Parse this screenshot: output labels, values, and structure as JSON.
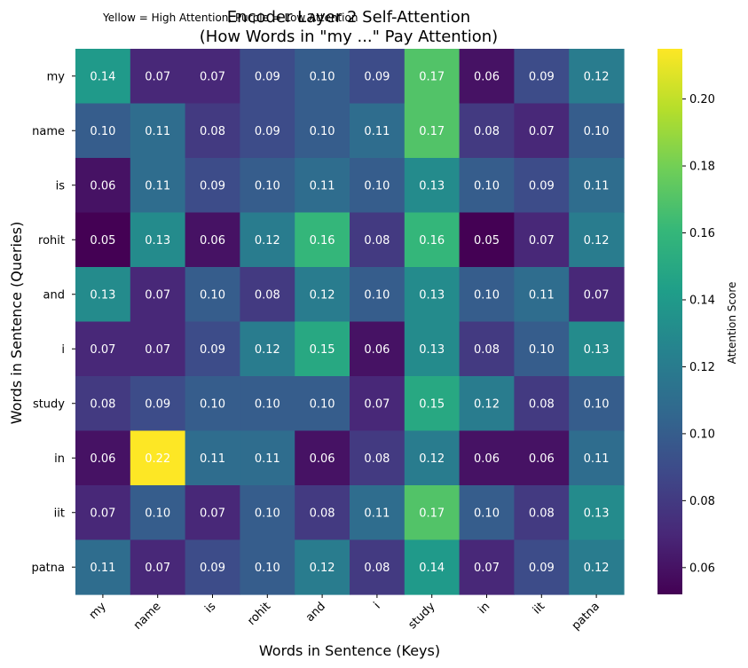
{
  "chart_data": {
    "type": "heatmap",
    "annotation": "Yellow = High Attention, Purple = Low Attention",
    "title_line1": "Encoder Layer 2 Self-Attention",
    "title_line2": "(How Words in \"my ...\" Pay Attention)",
    "xlabel": "Words in Sentence (Keys)",
    "ylabel": "Words in Sentence (Queries)",
    "x": [
      "my",
      "name",
      "is",
      "rohit",
      "and",
      "i",
      "study",
      "in",
      "iit",
      "patna"
    ],
    "y": [
      "my",
      "name",
      "is",
      "rohit",
      "and",
      "i",
      "study",
      "in",
      "iit",
      "patna"
    ],
    "values": [
      [
        0.14,
        0.07,
        0.07,
        0.09,
        0.1,
        0.09,
        0.17,
        0.06,
        0.09,
        0.12
      ],
      [
        0.1,
        0.11,
        0.08,
        0.09,
        0.1,
        0.11,
        0.17,
        0.08,
        0.07,
        0.1
      ],
      [
        0.06,
        0.11,
        0.09,
        0.1,
        0.11,
        0.1,
        0.13,
        0.1,
        0.09,
        0.11
      ],
      [
        0.05,
        0.13,
        0.06,
        0.12,
        0.16,
        0.08,
        0.16,
        0.05,
        0.07,
        0.12
      ],
      [
        0.13,
        0.07,
        0.1,
        0.08,
        0.12,
        0.1,
        0.13,
        0.1,
        0.11,
        0.07
      ],
      [
        0.07,
        0.07,
        0.09,
        0.12,
        0.15,
        0.06,
        0.13,
        0.08,
        0.1,
        0.13
      ],
      [
        0.08,
        0.09,
        0.1,
        0.1,
        0.1,
        0.07,
        0.15,
        0.12,
        0.08,
        0.1
      ],
      [
        0.06,
        0.22,
        0.11,
        0.11,
        0.06,
        0.08,
        0.12,
        0.06,
        0.06,
        0.11
      ],
      [
        0.07,
        0.1,
        0.07,
        0.1,
        0.08,
        0.11,
        0.17,
        0.1,
        0.08,
        0.13
      ],
      [
        0.11,
        0.07,
        0.09,
        0.1,
        0.12,
        0.08,
        0.14,
        0.07,
        0.09,
        0.12
      ]
    ],
    "colorbar": {
      "label": "Attention Score",
      "min": 0.052,
      "max": 0.215,
      "ticks": [
        0.06,
        0.08,
        0.1,
        0.12,
        0.14,
        0.16,
        0.18,
        0.2
      ],
      "tick_labels": [
        "0.06",
        "0.08",
        "0.10",
        "0.12",
        "0.14",
        "0.16",
        "0.18",
        "0.20"
      ]
    },
    "colormap": "viridis",
    "colormap_stops": [
      "#440154",
      "#482878",
      "#3e4989",
      "#31688e",
      "#26828e",
      "#1f9e89",
      "#35b779",
      "#6ece58",
      "#b5de2b",
      "#fde725"
    ],
    "cell_text_color": "#ffffff",
    "grid": false
  }
}
